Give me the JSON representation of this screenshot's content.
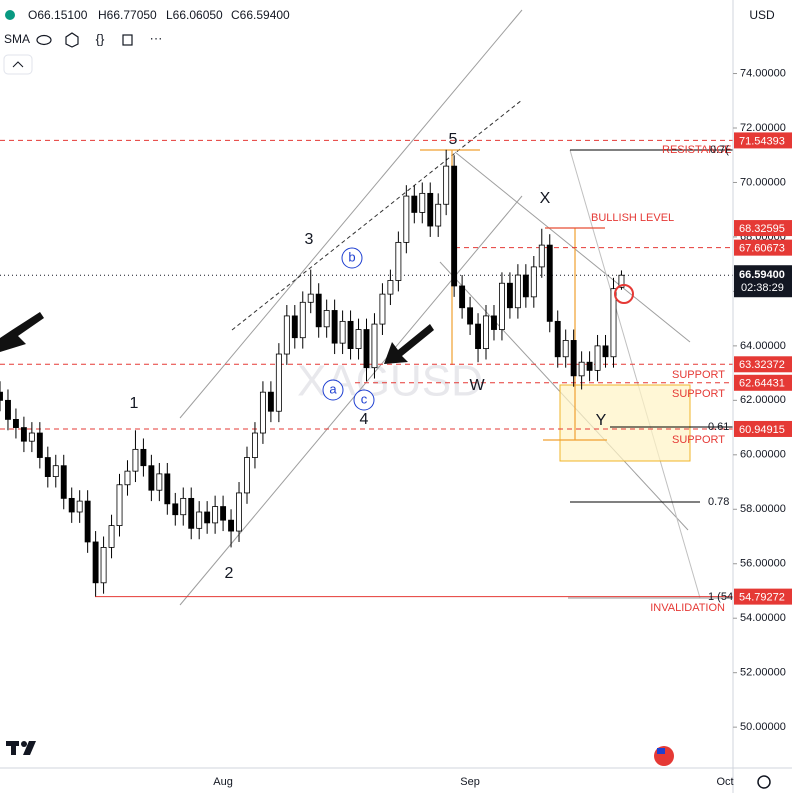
{
  "chart_data": {
    "type": "candlestick",
    "symbol": "XAGUSD",
    "currency": "USD",
    "header": {
      "ohlc": [
        "O66.15100",
        "H66.77050",
        "L66.06050",
        "C66.59400"
      ],
      "indicator": "SMA"
    },
    "categories": [
      null,
      null,
      null,
      null,
      null,
      null,
      null,
      null,
      null,
      null,
      null,
      null,
      null,
      null,
      null,
      null,
      null,
      null,
      null,
      null,
      null,
      null,
      null,
      null,
      null,
      null,
      null,
      null,
      "Aug",
      null,
      null,
      null,
      null,
      null,
      null,
      null,
      null,
      null,
      null,
      null,
      null,
      null,
      null,
      null,
      null,
      null,
      null,
      null,
      null,
      null,
      null,
      null,
      null,
      null,
      null,
      null,
      null,
      null,
      null,
      "Sep",
      null,
      null,
      null,
      null,
      null,
      null,
      null,
      null,
      null,
      null,
      null,
      null,
      null,
      null,
      null,
      null,
      null,
      null,
      null,
      null,
      null,
      null,
      null,
      null,
      null,
      null,
      null,
      null,
      null,
      null,
      null,
      "Oct"
    ],
    "open": [
      62.3,
      62.0,
      61.3,
      61.0,
      60.5,
      60.8,
      59.9,
      59.2,
      59.6,
      58.4,
      57.9,
      58.3,
      56.8,
      55.3,
      56.6,
      57.4,
      58.9,
      59.4,
      60.2,
      59.6,
      58.7,
      59.3,
      58.2,
      57.8,
      58.4,
      57.3,
      57.9,
      57.5,
      58.1,
      57.6,
      57.2,
      58.6,
      59.9,
      60.8,
      62.3,
      61.6,
      63.7,
      65.1,
      64.3,
      65.6,
      65.9,
      64.7,
      65.3,
      64.1,
      64.9,
      63.9,
      64.6,
      63.2,
      64.8,
      65.9,
      66.4,
      67.8,
      69.5,
      68.9,
      69.6,
      68.4,
      69.2,
      70.6,
      66.2,
      65.4,
      64.8,
      63.9,
      65.1,
      64.6,
      66.3,
      65.4,
      66.6,
      65.8,
      66.9,
      67.7,
      64.9,
      63.6,
      64.2,
      62.9,
      63.4,
      63.1,
      64.0,
      63.6,
      66.151,
      null,
      null,
      null,
      null,
      null,
      null,
      null,
      null,
      null,
      null,
      null,
      null,
      null
    ],
    "high": [
      62.7,
      62.4,
      61.7,
      61.4,
      61.2,
      61.2,
      60.3,
      60.0,
      60.0,
      58.8,
      58.7,
      58.7,
      57.2,
      57.0,
      57.8,
      59.3,
      59.8,
      60.9,
      60.6,
      60.0,
      59.7,
      59.7,
      58.6,
      58.8,
      58.8,
      58.3,
      58.3,
      58.5,
      58.5,
      58.0,
      59.0,
      60.3,
      61.2,
      62.7,
      62.7,
      64.1,
      65.5,
      65.5,
      66.0,
      66.8,
      66.3,
      65.7,
      65.7,
      65.3,
      65.3,
      65.0,
      65.0,
      65.2,
      66.3,
      66.8,
      68.2,
      69.9,
      69.9,
      70.0,
      70.0,
      69.6,
      71.2,
      71.0,
      66.6,
      65.8,
      65.2,
      65.5,
      65.5,
      66.7,
      66.7,
      67.0,
      67.0,
      67.3,
      68.3,
      68.1,
      65.3,
      64.6,
      64.6,
      63.8,
      63.8,
      64.4,
      64.4,
      66.5,
      66.7705,
      null,
      null,
      null,
      null,
      null,
      null,
      null,
      null,
      null,
      null,
      null,
      null,
      null
    ],
    "low": [
      61.6,
      60.9,
      60.6,
      60.1,
      60.1,
      59.5,
      58.8,
      58.8,
      58.0,
      57.5,
      57.5,
      56.4,
      54.8,
      54.9,
      56.2,
      57.0,
      58.5,
      59.0,
      59.2,
      58.3,
      58.3,
      57.8,
      57.4,
      57.4,
      56.9,
      56.9,
      57.1,
      57.1,
      57.2,
      56.6,
      56.8,
      58.2,
      59.5,
      60.4,
      61.2,
      61.2,
      63.3,
      63.9,
      63.9,
      65.2,
      64.3,
      64.3,
      63.7,
      63.7,
      63.5,
      63.5,
      62.7,
      62.8,
      64.4,
      65.5,
      66.0,
      67.4,
      68.5,
      68.5,
      68.0,
      68.0,
      68.8,
      65.8,
      65.0,
      64.4,
      63.4,
      63.5,
      64.2,
      64.2,
      65.0,
      65.0,
      65.4,
      65.4,
      66.5,
      64.5,
      63.2,
      63.2,
      62.5,
      62.4,
      62.7,
      62.7,
      63.2,
      63.2,
      66.0605,
      null,
      null,
      null,
      null,
      null,
      null,
      null,
      null,
      null,
      null,
      null,
      null,
      null
    ],
    "close": [
      62.0,
      61.3,
      61.0,
      60.5,
      60.8,
      59.9,
      59.2,
      59.6,
      58.4,
      57.9,
      58.3,
      56.8,
      55.3,
      56.6,
      57.4,
      58.9,
      59.4,
      60.2,
      59.6,
      58.7,
      59.3,
      58.2,
      57.8,
      58.4,
      57.3,
      57.9,
      57.5,
      58.1,
      57.6,
      57.2,
      58.6,
      59.9,
      60.8,
      62.3,
      61.6,
      63.7,
      65.1,
      64.3,
      65.6,
      65.9,
      64.7,
      65.3,
      64.1,
      64.9,
      63.9,
      64.6,
      63.2,
      64.8,
      65.9,
      66.4,
      67.8,
      69.5,
      68.9,
      69.6,
      68.4,
      69.2,
      70.6,
      66.2,
      65.4,
      64.8,
      63.9,
      65.1,
      64.6,
      66.3,
      65.4,
      66.6,
      65.8,
      66.9,
      67.7,
      64.9,
      63.6,
      64.2,
      62.9,
      63.4,
      63.1,
      64.0,
      63.6,
      66.1,
      66.594,
      null,
      null,
      null,
      null,
      null,
      null,
      null,
      null,
      null,
      null,
      null,
      null,
      null
    ],
    "up_color": "#ffffff",
    "down_color": "#000000",
    "ylim": [
      48.5,
      76.7
    ],
    "yticks": [
      {
        "value": 74,
        "label": "74.00000"
      },
      {
        "value": 72,
        "label": "72.00000"
      },
      {
        "value": 70,
        "label": "70.00000"
      },
      {
        "value": 68,
        "label": "68.00000"
      },
      {
        "value": 66,
        "label": "66.00000"
      },
      {
        "value": 64,
        "label": "64.00000"
      },
      {
        "value": 62,
        "label": "62.00000"
      },
      {
        "value": 60,
        "label": "60.00000"
      },
      {
        "value": 58,
        "label": "58.00000"
      },
      {
        "value": 56,
        "label": "56.00000"
      },
      {
        "value": 54,
        "label": "54.00000"
      },
      {
        "value": 52,
        "label": "52.00000"
      },
      {
        "value": 50,
        "label": "50.00000"
      }
    ],
    "grid": false,
    "levels": [
      {
        "value": 71.54393,
        "style": "dashed",
        "color": "#e53935"
      },
      {
        "value": 68.32595,
        "style": "solid",
        "color": "#e53935"
      },
      {
        "value": 67.60673,
        "style": "dashed",
        "color": "#e53935"
      },
      {
        "value": 63.32372,
        "style": "dashed",
        "color": "#e53935"
      },
      {
        "value": 62.64431,
        "style": "dashed",
        "color": "#e53935"
      },
      {
        "value": 60.94915,
        "style": "dashed",
        "color": "#e53935"
      },
      {
        "value": 54.79272,
        "style": "solid",
        "color": "#e53935"
      }
    ],
    "last_price": {
      "value": 66.594,
      "label": "66.59400"
    },
    "countdown": "02:38:29",
    "annotations": {
      "resistance": "RESISTANCE",
      "bullish": "BULLISH LEVEL",
      "support": [
        "SUPPORT",
        "SUPPORT",
        "SUPPORT"
      ],
      "invalidation": "INVALIDATION",
      "fib": [
        "0.7(",
        "0.61",
        "0.78",
        "1 (54"
      ],
      "waves": [
        "1",
        "2",
        "3",
        "4",
        "5"
      ],
      "sub_waves": [
        "a",
        "b",
        "c"
      ],
      "corrective": [
        "W",
        "X",
        "Y"
      ]
    }
  }
}
